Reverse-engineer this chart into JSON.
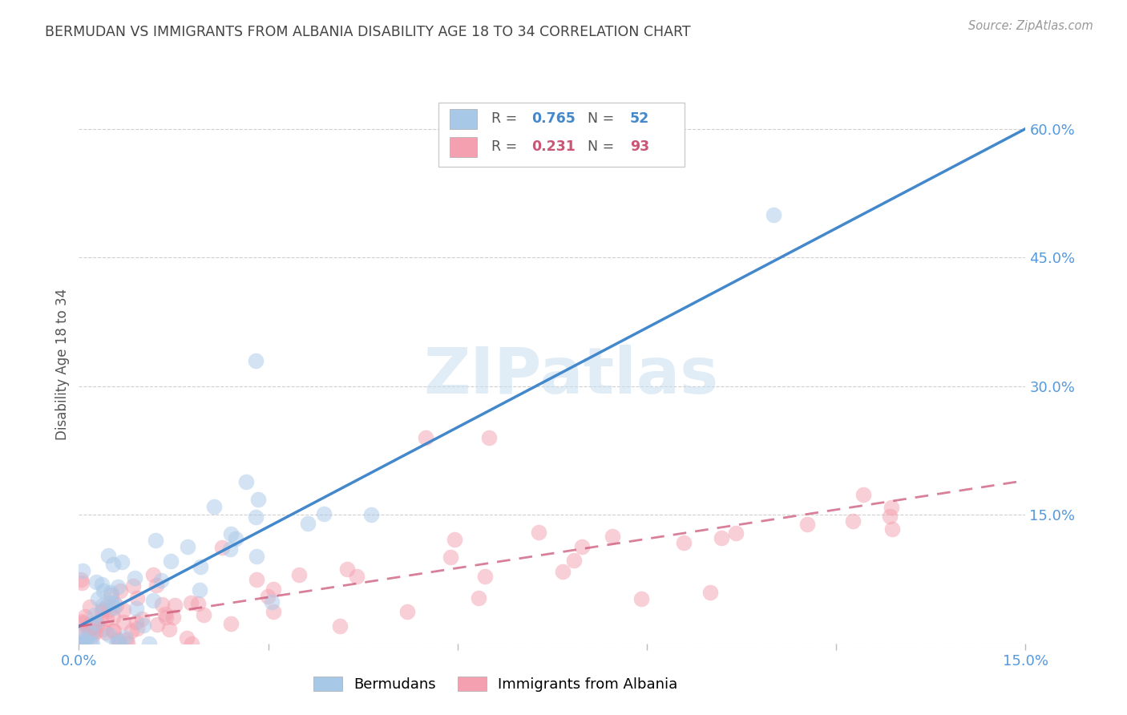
{
  "title": "BERMUDAN VS IMMIGRANTS FROM ALBANIA DISABILITY AGE 18 TO 34 CORRELATION CHART",
  "source": "Source: ZipAtlas.com",
  "ylabel": "Disability Age 18 to 34",
  "xlim": [
    0.0,
    0.15
  ],
  "ylim": [
    0.0,
    0.65
  ],
  "bermudan_R": 0.765,
  "bermudan_N": 52,
  "albania_R": 0.231,
  "albania_N": 93,
  "bermudan_color": "#a8c8e8",
  "albania_color": "#f4a0b0",
  "trendline_bermudan_color": "#4488cc",
  "trendline_albania_color": "#cc5577",
  "watermark": "ZIPatlas",
  "background_color": "#ffffff",
  "grid_color": "#cccccc",
  "title_color": "#444444",
  "axis_label_color": "#5599dd",
  "right_yticks": [
    0.0,
    0.15,
    0.3,
    0.45,
    0.6
  ],
  "right_ytick_labels": [
    "",
    "15.0%",
    "30.0%",
    "45.0%",
    "60.0%"
  ],
  "xticks": [
    0.0,
    0.03,
    0.06,
    0.09,
    0.12,
    0.15
  ],
  "xtick_labels": [
    "0.0%",
    "",
    "",
    "",
    "",
    "15.0%"
  ],
  "legend_R1": "0.765",
  "legend_N1": "52",
  "legend_R2": "0.231",
  "legend_N2": "93",
  "legend_label1": "Bermudans",
  "legend_label2": "Immigrants from Albania"
}
